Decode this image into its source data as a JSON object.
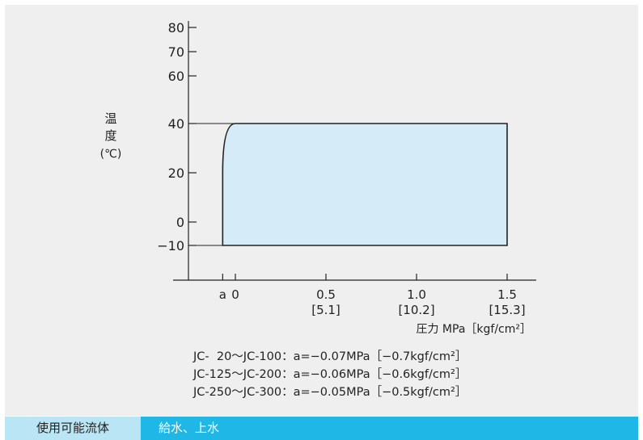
{
  "chart_data": {
    "type": "area",
    "ylabel_chars": [
      "温",
      "度"
    ],
    "ylabel_unit": "(℃)",
    "y_ticks": [
      {
        "value": 80,
        "label": "80"
      },
      {
        "value": 70,
        "label": "70"
      },
      {
        "value": 60,
        "label": "60"
      },
      {
        "value": 40,
        "label": "40"
      },
      {
        "value": 20,
        "label": "20"
      },
      {
        "value": 0,
        "label": "0"
      },
      {
        "value": -10,
        "label": "−10"
      }
    ],
    "x_ticks": [
      {
        "value": -0.07,
        "label": "a",
        "sub": ""
      },
      {
        "value": 0,
        "label": "0",
        "sub": ""
      },
      {
        "value": 0.5,
        "label": "0.5",
        "sub": "[5.1]"
      },
      {
        "value": 1.0,
        "label": "1.0",
        "sub": "[10.2]"
      },
      {
        "value": 1.5,
        "label": "1.5",
        "sub": "[15.3]"
      }
    ],
    "xlabel": "圧力 MPa［kgf/cm²］",
    "region": {
      "pressure_min": "a",
      "pressure_max": 1.5,
      "temp_min": -10,
      "temp_max": 40,
      "temp_at_pressure_min": 20,
      "curve_reaches_max_at_pressure": 0
    },
    "notes": [
      "JC-  20〜JC-100：a=−0.07MPa［−0.7kgf/cm²］",
      "JC-125〜JC-200：a=−0.06MPa［−0.6kgf/cm²］",
      "JC-250〜JC-300：a=−0.05MPa［−0.5kgf/cm²］"
    ],
    "colors": {
      "fill": "#d5ecf8",
      "line": "#222222"
    }
  },
  "footer": {
    "label": "使用可能流体",
    "value": "給水、上水"
  }
}
